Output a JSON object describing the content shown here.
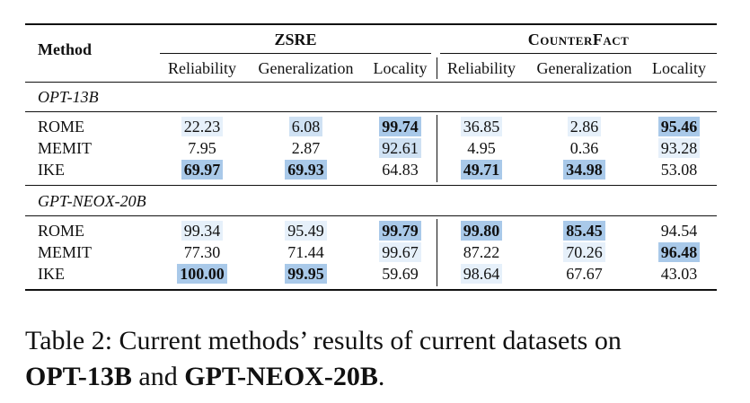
{
  "table": {
    "method_header": "Method",
    "group_headers": [
      "ZSRE",
      "CounterFact"
    ],
    "column_headers": [
      "Reliability",
      "Generalization",
      "Locality",
      "Reliability",
      "Generalization",
      "Locality"
    ],
    "sections": [
      {
        "model": "OPT-13B",
        "rows": [
          {
            "method": "ROME",
            "values": [
              "22.23",
              "6.08",
              "99.74",
              "36.85",
              "2.86",
              "95.46"
            ]
          },
          {
            "method": "MEMIT",
            "values": [
              "7.95",
              "2.87",
              "92.61",
              "4.95",
              "0.36",
              "93.28"
            ]
          },
          {
            "method": "IKE",
            "values": [
              "69.97",
              "69.93",
              "64.83",
              "49.71",
              "34.98",
              "53.08"
            ]
          }
        ]
      },
      {
        "model": "GPT-NEOX-20B",
        "rows": [
          {
            "method": "ROME",
            "values": [
              "99.34",
              "95.49",
              "99.79",
              "99.80",
              "85.45",
              "94.54"
            ]
          },
          {
            "method": "MEMIT",
            "values": [
              "77.30",
              "71.44",
              "99.67",
              "87.22",
              "70.26",
              "96.48"
            ]
          },
          {
            "method": "IKE",
            "values": [
              "100.00",
              "99.95",
              "59.69",
              "98.64",
              "67.67",
              "43.03"
            ]
          }
        ]
      }
    ],
    "highlight_colors": {
      "strong": "#a9c9e9",
      "mid": "#cfe1f3",
      "light": "#e6f0fa"
    }
  },
  "caption": {
    "prefix": "Table 2: Current methods’ results of current datasets on",
    "model_a": "OPT-13B",
    "joiner": " and ",
    "model_b": "GPT-NEOX-20B",
    "suffix": "."
  }
}
